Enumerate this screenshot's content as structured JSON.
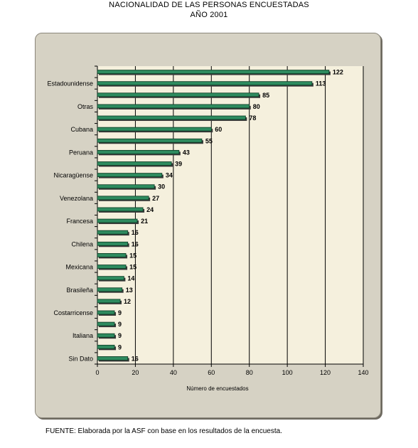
{
  "title_line1": "NACIONALIDAD DE LAS PERSONAS ENCUESTADAS",
  "title_line2": "AÑO 2001",
  "footer": "FUENTE: Elaborada por la ASF con base en los resultados de la encuesta.",
  "colors": {
    "bar": "#2e8b5f",
    "bar_edge": "#0b3a22",
    "plot_bg": "#f5f0dd",
    "frame": "#d6d2c4"
  },
  "chart_data": {
    "type": "bar",
    "orientation": "horizontal",
    "title": "NACIONALIDAD DE LAS PERSONAS ENCUESTADAS AÑO 2001",
    "xlabel": "Número de encuestados",
    "ylabel": "",
    "xlim": [
      0,
      140
    ],
    "xticks": [
      0,
      20,
      40,
      60,
      80,
      100,
      120,
      140
    ],
    "grid": "vertical",
    "values": [
      122,
      113,
      85,
      80,
      78,
      60,
      55,
      43,
      39,
      34,
      30,
      27,
      24,
      21,
      16,
      16,
      15,
      15,
      14,
      13,
      12,
      9,
      9,
      9,
      9,
      16
    ],
    "labels": [
      "",
      "Estadounidense",
      "",
      "Otras",
      "",
      "Cubana",
      "",
      "Peruana",
      "",
      "Nicaragüense",
      "",
      "Venezolana",
      "",
      "Francesa",
      "",
      "Chilena",
      "",
      "Mexicana",
      "",
      "Brasileña",
      "",
      "Costarricense",
      "",
      "Italiana",
      "",
      "Sin Dato"
    ]
  }
}
